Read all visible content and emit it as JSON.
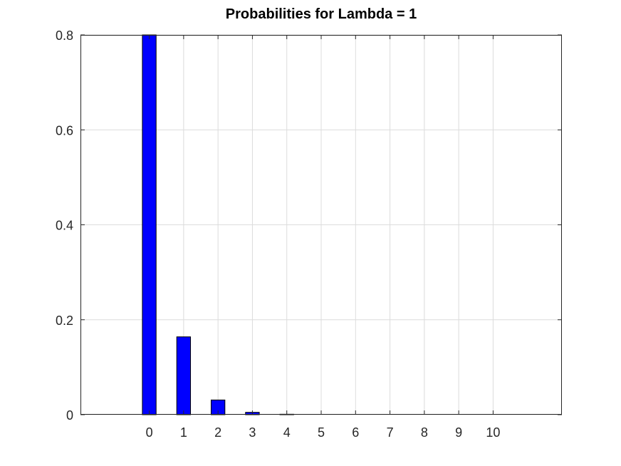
{
  "chart_data": {
    "type": "bar",
    "title": "Probabilities for Lambda =  1",
    "xlabel": "",
    "ylabel": "",
    "categories": [
      "0",
      "1",
      "2",
      "3",
      "4",
      "5",
      "6",
      "7",
      "8",
      "9",
      "10"
    ],
    "values": [
      0.8,
      0.164,
      0.031,
      0.005,
      0.001,
      0,
      0,
      0,
      0,
      0,
      0
    ],
    "xlim": [
      -2,
      12
    ],
    "ylim": [
      0,
      0.8
    ],
    "yticks": [
      "0",
      "0.2",
      "0.4",
      "0.6",
      "0.8"
    ],
    "grid": true,
    "legend": "none",
    "bar_color": "#0000ff",
    "bar_edge_color": "#000000"
  }
}
